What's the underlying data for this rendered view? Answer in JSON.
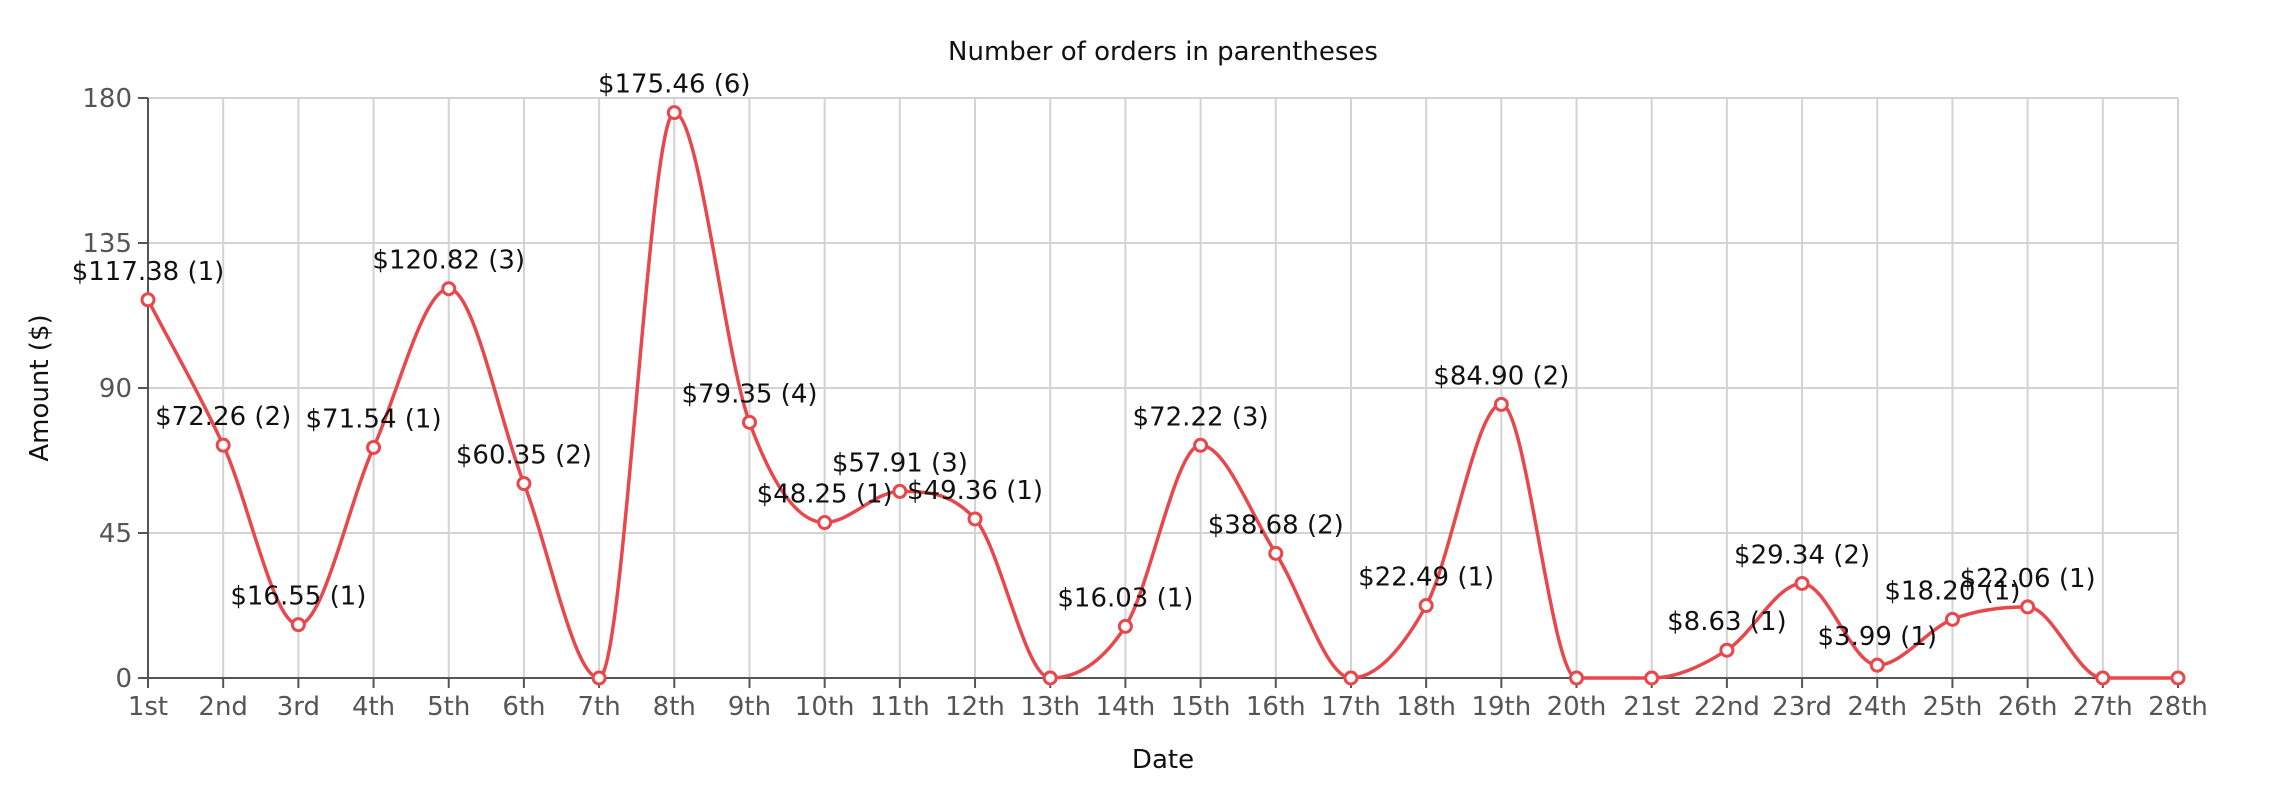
{
  "chart_data": {
    "type": "line",
    "title": "Number of orders in parentheses",
    "xlabel": "Date",
    "ylabel": "Amount ($)",
    "ylim": [
      0,
      180
    ],
    "yticks": [
      "0",
      "45",
      "90",
      "135",
      "180"
    ],
    "grid": true,
    "curve": "smooth",
    "color": "#e8474c",
    "x": [
      "1st",
      "2nd",
      "3rd",
      "4th",
      "5th",
      "6th",
      "7th",
      "8th",
      "9th",
      "10th",
      "11th",
      "12th",
      "13th",
      "14th",
      "15th",
      "16th",
      "17th",
      "18th",
      "19th",
      "20th",
      "21st",
      "22nd",
      "23rd",
      "24th",
      "25th",
      "26th",
      "27th",
      "28th"
    ],
    "series": [
      {
        "values": [
          117.38,
          72.26,
          16.55,
          71.54,
          120.82,
          60.35,
          0,
          175.46,
          79.35,
          48.25,
          57.91,
          49.36,
          0,
          16.03,
          72.22,
          38.68,
          0,
          22.49,
          84.9,
          0,
          0,
          8.63,
          29.34,
          3.99,
          18.2,
          22.06,
          0,
          0
        ],
        "labels": [
          "$117.38 (1)",
          "$72.26 (2)",
          "$16.55 (1)",
          "$71.54 (1)",
          "$120.82 (3)",
          "$60.35 (2)",
          "",
          "$175.46 (6)",
          "$79.35 (4)",
          "$48.25 (1)",
          "$57.91 (3)",
          "$49.36 (1)",
          "",
          "$16.03 (1)",
          "$72.22 (3)",
          "$38.68 (2)",
          "",
          "$22.49 (1)",
          "$84.90 (2)",
          "",
          "",
          "$8.63 (1)",
          "$29.34 (2)",
          "$3.99 (1)",
          "$18.20 (1)",
          "$22.06 (1)",
          "",
          ""
        ]
      }
    ]
  }
}
